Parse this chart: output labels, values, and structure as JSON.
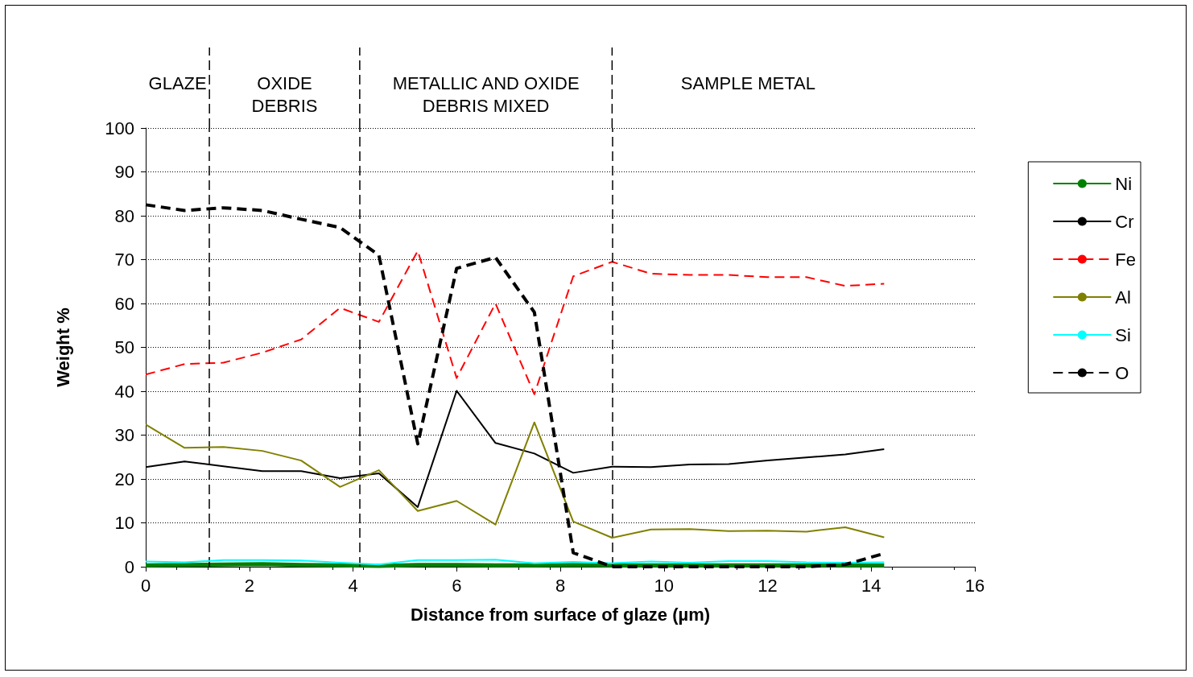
{
  "chart_data": {
    "type": "line",
    "xlabel": "Distance from surface of glaze (µm)",
    "ylabel": "Weight %",
    "x": [
      0,
      0.75,
      1.5,
      2.25,
      3,
      3.75,
      4.5,
      5.25,
      6,
      6.75,
      7.5,
      8.25,
      9,
      9.75,
      10.5,
      11.25,
      12,
      12.75,
      13.5,
      14.25
    ],
    "series": [
      {
        "name": "Ni",
        "color": "#008000",
        "line_style": "solid",
        "values": [
          0.3,
          0.4,
          0.5,
          0.6,
          0.4,
          0.3,
          0.2,
          0.4,
          0.4,
          0.3,
          0.3,
          0.4,
          0.3,
          0.3,
          0.3,
          0.3,
          0.3,
          0.3,
          0.3,
          0.3
        ]
      },
      {
        "name": "Cr",
        "color": "#000000",
        "line_style": "solid",
        "values": [
          22.7,
          24,
          22.9,
          21.8,
          21.8,
          20.2,
          21.3,
          13.6,
          40.1,
          28.2,
          25.8,
          21.4,
          22.8,
          22.7,
          23.3,
          23.4,
          24.2,
          24.9,
          25.6,
          26.8
        ]
      },
      {
        "name": "Fe",
        "color": "#ff0000",
        "line_style": "dashed",
        "values": [
          43.8,
          46.2,
          46.5,
          48.8,
          51.8,
          59,
          55.8,
          72,
          43,
          60,
          39.3,
          66.2,
          69.5,
          66.8,
          66.5,
          66.5,
          66,
          66,
          64,
          64.5
        ]
      },
      {
        "name": "Al",
        "color": "#808000",
        "line_style": "solid",
        "values": [
          32.4,
          27.1,
          27.3,
          26.4,
          24.2,
          18.2,
          22,
          12.7,
          15,
          9.6,
          32.9,
          10.3,
          6.6,
          8.5,
          8.6,
          8.1,
          8.2,
          8,
          9,
          6.7
        ]
      },
      {
        "name": "Si",
        "color": "#00ffff",
        "line_style": "solid",
        "values": [
          1.2,
          1,
          1.5,
          1.5,
          1.4,
          0.9,
          0.5,
          1.5,
          1.5,
          1.6,
          0.8,
          1.1,
          0.8,
          1.2,
          0.9,
          1.3,
          1.3,
          1,
          0.9,
          1
        ]
      },
      {
        "name": "O",
        "color": "#000000",
        "line_style": "dashed",
        "values": [
          82.5,
          81.2,
          81.8,
          81.2,
          79.2,
          77.3,
          71,
          28,
          68,
          70.5,
          58,
          3.2,
          0,
          0,
          0,
          0,
          0,
          0,
          0.5,
          3
        ]
      }
    ],
    "xlim": [
      0,
      16
    ],
    "xticks": [
      0,
      2,
      4,
      6,
      8,
      10,
      12,
      14,
      16
    ],
    "ylim": [
      0,
      100
    ],
    "yticks": [
      0,
      10,
      20,
      30,
      40,
      50,
      60,
      70,
      80,
      90,
      100
    ],
    "grid": "y",
    "legend": "right",
    "marker": "none",
    "ref_lines": [
      {
        "axis": "x",
        "value": 1.23,
        "line_style": "dashed",
        "color": "#000000"
      },
      {
        "axis": "x",
        "value": 4.13,
        "line_style": "dashed",
        "color": "#000000"
      },
      {
        "axis": "x",
        "value": 9.0,
        "line_style": "dashed",
        "color": "#000000"
      }
    ],
    "annotations": [
      "GLAZE",
      "OXIDE\nDEBRIS",
      "METALLIC AND OXIDE\nDEBRIS MIXED",
      "SAMPLE METAL"
    ]
  }
}
